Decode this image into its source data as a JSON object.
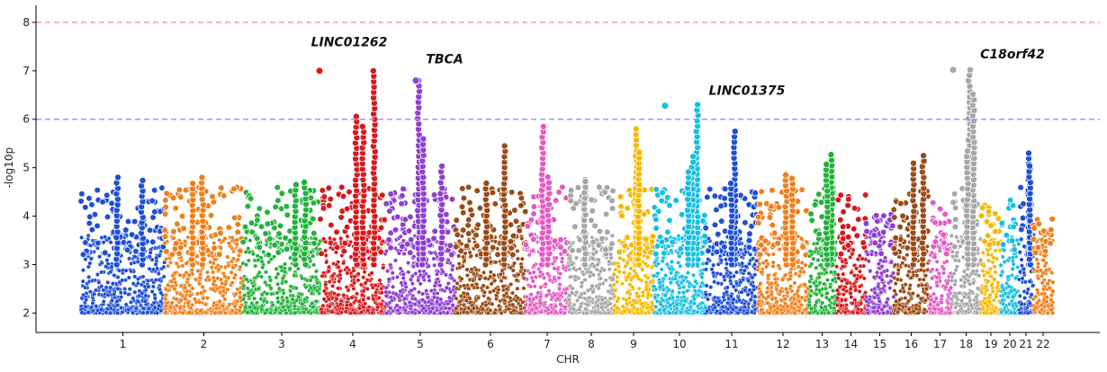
{
  "chart_data": {
    "type": "scatter",
    "subtype": "manhattan",
    "xlabel": "CHR",
    "ylabel": "-log10p",
    "ylim": [
      1.6,
      8.35
    ],
    "yticks": [
      2,
      3,
      4,
      5,
      6,
      7,
      8
    ],
    "grid": false,
    "point_marker": "circle with white edge",
    "chromosomes": [
      {
        "chr": "1",
        "color": "#1f4fd6",
        "peak": 4.8
      },
      {
        "chr": "2",
        "color": "#f07f1a",
        "peak": 4.8
      },
      {
        "chr": "3",
        "color": "#22b33a",
        "peak": 4.7
      },
      {
        "chr": "4",
        "color": "#d7191c",
        "peak": 7.0
      },
      {
        "chr": "5",
        "color": "#8e3fd0",
        "peak": 6.8
      },
      {
        "chr": "6",
        "color": "#9a4b16",
        "peak": 5.45
      },
      {
        "chr": "7",
        "color": "#e35bc3",
        "peak": 5.85
      },
      {
        "chr": "8",
        "color": "#a6a6a6",
        "peak": 4.75
      },
      {
        "chr": "9",
        "color": "#f5b800",
        "peak": 5.8
      },
      {
        "chr": "10",
        "color": "#17bfe0",
        "peak": 6.3
      },
      {
        "chr": "11",
        "color": "#1f4fd6",
        "peak": 5.75
      },
      {
        "chr": "12",
        "color": "#f07f1a",
        "peak": 4.85
      },
      {
        "chr": "13",
        "color": "#22b33a",
        "peak": 5.27
      },
      {
        "chr": "14",
        "color": "#d7191c",
        "peak": 4.45
      },
      {
        "chr": "15",
        "color": "#8e3fd0",
        "peak": 4.1
      },
      {
        "chr": "16",
        "color": "#9a4b16",
        "peak": 5.25
      },
      {
        "chr": "17",
        "color": "#e35bc3",
        "peak": 4.35
      },
      {
        "chr": "18",
        "color": "#a6a6a6",
        "peak": 7.02
      },
      {
        "chr": "19",
        "color": "#f5b800",
        "peak": 4.3
      },
      {
        "chr": "20",
        "color": "#17bfe0",
        "peak": 4.5
      },
      {
        "chr": "21",
        "color": "#1f4fd6",
        "peak": 5.3
      },
      {
        "chr": "22",
        "color": "#f07f1a",
        "peak": 4.0
      }
    ],
    "thresholds": [
      {
        "y": 8,
        "color": "#ff9999",
        "style": "dashed"
      },
      {
        "y": 6,
        "color": "#9999ff",
        "style": "dashed"
      }
    ],
    "top_hits": [
      {
        "chr": "4",
        "y": 7.0,
        "color": "#d7191c"
      },
      {
        "chr": "5",
        "y": 6.8,
        "color": "#8e3fd0"
      },
      {
        "chr": "10",
        "y": 6.28,
        "color": "#17bfe0"
      },
      {
        "chr": "18",
        "y": 7.02,
        "color": "#a6a6a6"
      }
    ],
    "annotations": [
      {
        "text": "LINC01262",
        "chr": "4",
        "y": 7.6
      },
      {
        "text": "TBCA",
        "chr": "5",
        "y": 7.25
      },
      {
        "text": "LINC01375",
        "chr": "10",
        "y": 6.6
      },
      {
        "text": "C18orf42",
        "chr": "18",
        "y": 7.35
      }
    ]
  }
}
